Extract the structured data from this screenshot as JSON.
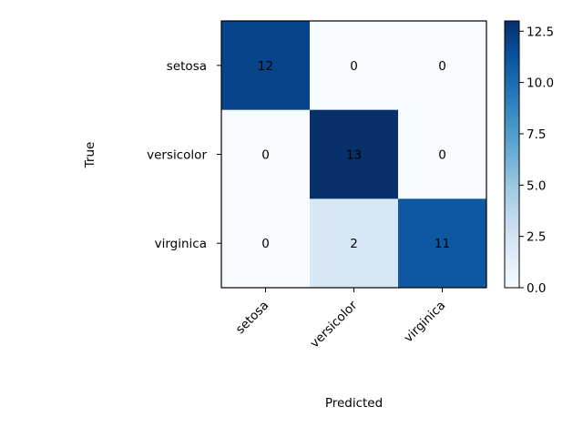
{
  "chart_data": {
    "type": "heatmap",
    "title": "",
    "xlabel": "Predicted",
    "ylabel": "True",
    "x_categories": [
      "setosa",
      "versicolor",
      "virginica"
    ],
    "y_categories": [
      "setosa",
      "versicolor",
      "virginica"
    ],
    "matrix": [
      [
        12,
        0,
        0
      ],
      [
        0,
        13,
        0
      ],
      [
        0,
        2,
        11
      ]
    ],
    "colormap": "Blues",
    "colorbar": {
      "range": [
        0,
        13
      ],
      "ticks": [
        0.0,
        2.5,
        5.0,
        7.5,
        10.0,
        12.5
      ],
      "tick_labels": [
        "0.0",
        "2.5",
        "5.0",
        "7.5",
        "10.0",
        "12.5"
      ]
    }
  }
}
